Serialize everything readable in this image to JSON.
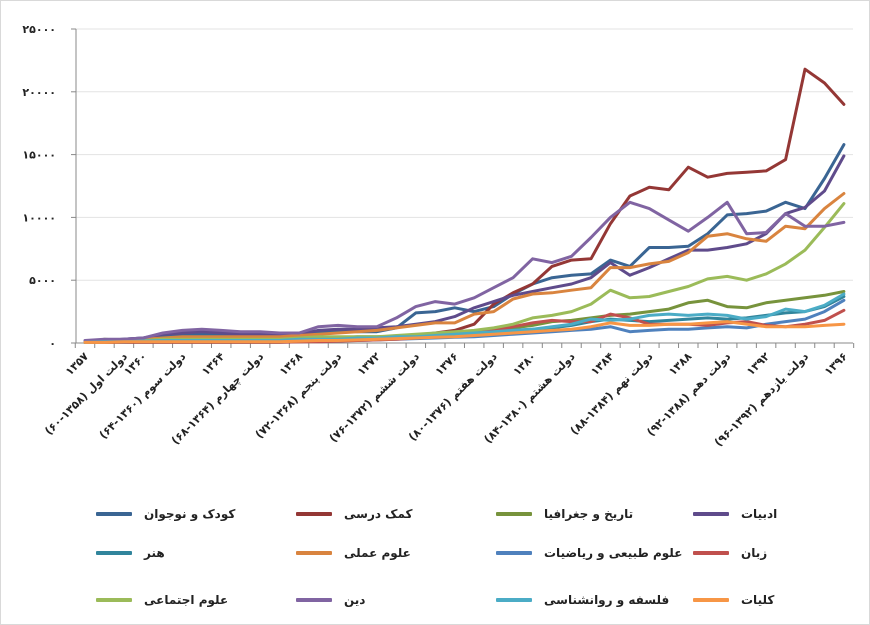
{
  "chart_data": {
    "type": "line",
    "title": "",
    "xlabel": "",
    "ylabel": "",
    "ylim": [
      0,
      25000
    ],
    "grid": true,
    "legend_position": "bottom",
    "y_tick_labels": [
      "۰",
      "۵۰۰۰",
      "۱۰۰۰۰",
      "۱۵۰۰۰",
      "۲۰۰۰۰",
      "۲۵۰۰۰"
    ],
    "y_tick_values": [
      0,
      5000,
      10000,
      15000,
      20000,
      25000
    ],
    "x": [
      1357,
      1358,
      1359,
      1360,
      1361,
      1362,
      1363,
      1364,
      1365,
      1366,
      1367,
      1368,
      1369,
      1370,
      1371,
      1372,
      1373,
      1374,
      1375,
      1376,
      1377,
      1378,
      1379,
      1380,
      1381,
      1382,
      1383,
      1384,
      1385,
      1386,
      1387,
      1388,
      1389,
      1390,
      1391,
      1392,
      1393,
      1394,
      1395,
      1396
    ],
    "x_tick_labels": [
      {
        "index": 0,
        "label": "۱۳۵۷"
      },
      {
        "index": 2,
        "label": "دولت اول (۱۳۵۸-۶۰)"
      },
      {
        "index": 3,
        "label": "۱۳۶۰"
      },
      {
        "index": 5,
        "label": "دولت سوم (۱۳۶۰-۶۴)"
      },
      {
        "index": 7,
        "label": "۱۳۶۴"
      },
      {
        "index": 9,
        "label": "دولت چهارم (۱۳۶۴-۶۸)"
      },
      {
        "index": 11,
        "label": "۱۳۶۸"
      },
      {
        "index": 13,
        "label": "دولت پنجم (۱۳۶۸-۷۲)"
      },
      {
        "index": 15,
        "label": "۱۳۷۲"
      },
      {
        "index": 17,
        "label": "دولت ششم (۱۳۷۲-۷۶)"
      },
      {
        "index": 19,
        "label": "۱۳۷۶"
      },
      {
        "index": 21,
        "label": "دولت هفتم (۱۳۷۶-۸۰)"
      },
      {
        "index": 23,
        "label": "۱۳۸۰"
      },
      {
        "index": 25,
        "label": "دولت هشتم (۱۳۸۰-۸۴)"
      },
      {
        "index": 27,
        "label": "۱۳۸۴"
      },
      {
        "index": 29,
        "label": "دولت نهم (۱۳۸۴-۸۸)"
      },
      {
        "index": 31,
        "label": "۱۳۸۸"
      },
      {
        "index": 33,
        "label": "دولت دهم (۱۳۸۸-۹۲)"
      },
      {
        "index": 35,
        "label": "۱۳۹۲"
      },
      {
        "index": 37,
        "label": "دولت یازدهم (۱۳۹۲-۹۶)"
      },
      {
        "index": 39,
        "label": "۱۳۹۶"
      }
    ],
    "series": [
      {
        "name": "کودک و نوجوان",
        "color": "#3A6593",
        "values": [
          100,
          200,
          300,
          400,
          600,
          700,
          700,
          600,
          500,
          500,
          500,
          500,
          900,
          1000,
          900,
          900,
          1200,
          2400,
          2500,
          2800,
          2500,
          2900,
          3900,
          4700,
          5200,
          5400,
          5500,
          6600,
          6100,
          7600,
          7600,
          7700,
          8700,
          10200,
          10300,
          10500,
          11200,
          10700,
          13100,
          15800
        ]
      },
      {
        "name": "کمک درسی",
        "color": "#943735",
        "values": [
          50,
          50,
          50,
          50,
          50,
          50,
          50,
          50,
          50,
          50,
          50,
          100,
          150,
          200,
          250,
          300,
          400,
          600,
          800,
          1000,
          1500,
          3100,
          4000,
          4700,
          6100,
          6600,
          6700,
          9500,
          11700,
          12400,
          12200,
          14000,
          13200,
          13500,
          13600,
          13700,
          14600,
          21800,
          20700,
          19000
        ]
      },
      {
        "name": "تاریخ و جغرافیا",
        "color": "#77933C",
        "values": [
          50,
          100,
          200,
          200,
          300,
          300,
          300,
          300,
          300,
          300,
          300,
          400,
          400,
          400,
          500,
          500,
          500,
          600,
          700,
          800,
          900,
          1000,
          1200,
          1400,
          1700,
          1800,
          2000,
          2200,
          2300,
          2500,
          2700,
          3200,
          3400,
          2900,
          2800,
          3200,
          3400,
          3600,
          3800,
          4100
        ]
      },
      {
        "name": "ادبیات",
        "color": "#5F4B8B",
        "values": [
          100,
          200,
          300,
          400,
          700,
          800,
          900,
          800,
          700,
          700,
          600,
          700,
          1000,
          1100,
          1100,
          1200,
          1300,
          1500,
          1700,
          2100,
          2800,
          3300,
          3800,
          4100,
          4400,
          4700,
          5200,
          6400,
          5400,
          6000,
          6700,
          7400,
          7400,
          7600,
          7900,
          8700,
          10300,
          10800,
          12100,
          14900
        ]
      },
      {
        "name": "هنر",
        "color": "#31859C",
        "values": [
          50,
          100,
          100,
          150,
          200,
          200,
          200,
          200,
          200,
          200,
          200,
          300,
          300,
          300,
          400,
          400,
          500,
          500,
          600,
          700,
          800,
          900,
          1000,
          1100,
          1200,
          1400,
          1700,
          1900,
          1800,
          1700,
          1800,
          1900,
          2000,
          1900,
          2000,
          2200,
          2400,
          2500,
          2900,
          3700
        ]
      },
      {
        "name": "علوم عملی",
        "color": "#D9843F",
        "values": [
          50,
          100,
          200,
          300,
          400,
          500,
          500,
          500,
          500,
          500,
          500,
          600,
          700,
          800,
          900,
          1000,
          1200,
          1400,
          1600,
          1600,
          2300,
          2500,
          3500,
          3900,
          4000,
          4200,
          4400,
          6000,
          6000,
          6300,
          6500,
          7200,
          8500,
          8700,
          8300,
          8100,
          9300,
          9100,
          10700,
          11900
        ]
      },
      {
        "name": "علوم طبیعی و ریاضیات",
        "color": "#4F81BD",
        "values": [
          50,
          100,
          100,
          100,
          100,
          100,
          100,
          100,
          100,
          100,
          100,
          150,
          200,
          200,
          200,
          250,
          300,
          350,
          400,
          450,
          500,
          600,
          700,
          800,
          900,
          1000,
          1100,
          1300,
          900,
          1000,
          1100,
          1100,
          1200,
          1300,
          1200,
          1500,
          1700,
          1900,
          2500,
          3400
        ]
      },
      {
        "name": "زبان",
        "color": "#C0504D",
        "values": [
          50,
          100,
          100,
          100,
          100,
          100,
          100,
          100,
          100,
          100,
          100,
          100,
          100,
          150,
          200,
          250,
          300,
          400,
          500,
          600,
          800,
          1000,
          1300,
          1600,
          1800,
          1700,
          1700,
          2300,
          2000,
          1500,
          1500,
          1500,
          1400,
          1600,
          1700,
          1400,
          1300,
          1500,
          1800,
          2600
        ]
      },
      {
        "name": "علوم اجتماعی",
        "color": "#9BBB59",
        "values": [
          50,
          300,
          200,
          200,
          300,
          300,
          300,
          300,
          300,
          300,
          300,
          400,
          500,
          500,
          500,
          500,
          600,
          700,
          800,
          900,
          1000,
          1200,
          1500,
          2000,
          2200,
          2500,
          3100,
          4200,
          3600,
          3700,
          4100,
          4500,
          5100,
          5300,
          5000,
          5500,
          6300,
          7400,
          9200,
          11100
        ]
      },
      {
        "name": "دین",
        "color": "#8064A2",
        "values": [
          200,
          300,
          300,
          400,
          800,
          1000,
          1100,
          1000,
          900,
          900,
          800,
          800,
          1300,
          1400,
          1300,
          1300,
          2000,
          2900,
          3300,
          3100,
          3600,
          4400,
          5200,
          6700,
          6400,
          6900,
          8400,
          10000,
          11200,
          10700,
          9800,
          8900,
          10000,
          11200,
          8700,
          8800,
          10300,
          9300,
          9300,
          9600
        ]
      },
      {
        "name": "فلسفه و روانشناسی",
        "color": "#4BACC6",
        "values": [
          50,
          100,
          100,
          150,
          200,
          200,
          200,
          200,
          200,
          200,
          200,
          300,
          300,
          300,
          400,
          400,
          500,
          500,
          600,
          700,
          800,
          900,
          1000,
          1100,
          1300,
          1500,
          1900,
          1800,
          1900,
          2200,
          2300,
          2200,
          2300,
          2200,
          1900,
          2100,
          2700,
          2500,
          3000,
          3900
        ]
      },
      {
        "name": "کلیات",
        "color": "#F79646",
        "values": [
          50,
          50,
          100,
          100,
          100,
          100,
          100,
          100,
          100,
          100,
          100,
          150,
          200,
          200,
          250,
          300,
          350,
          400,
          450,
          500,
          600,
          700,
          800,
          900,
          1000,
          1100,
          1300,
          1600,
          1400,
          1400,
          1500,
          1500,
          1600,
          1700,
          1500,
          1300,
          1300,
          1300,
          1400,
          1500
        ]
      }
    ]
  }
}
